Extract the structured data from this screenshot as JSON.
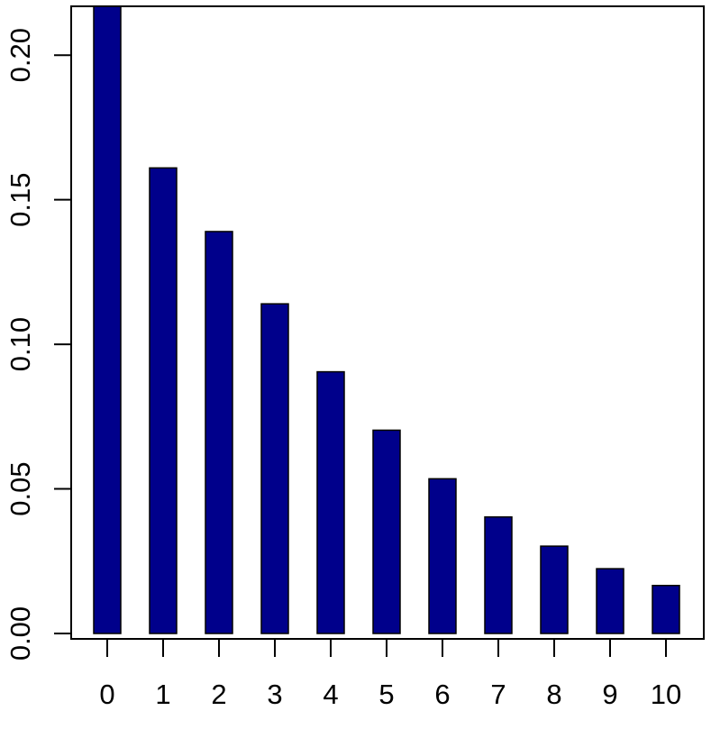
{
  "chart_data": {
    "type": "bar",
    "title": "",
    "xlabel": "",
    "ylabel": "",
    "categories": [
      "0",
      "1",
      "2",
      "3",
      "4",
      "5",
      "6",
      "7",
      "8",
      "9",
      "10"
    ],
    "values": [
      0.217,
      0.161,
      0.139,
      0.114,
      0.0905,
      0.0703,
      0.0535,
      0.0403,
      0.0302,
      0.0224,
      0.0166
    ],
    "ylim": [
      0,
      0.217
    ],
    "yticks": [
      "0.00",
      "0.05",
      "0.10",
      "0.15",
      "0.20"
    ],
    "ytick_values": [
      0,
      0.05,
      0.1,
      0.15,
      0.2
    ],
    "bar_color": "#00008B",
    "bar_edge_color": "#000000",
    "grid": false,
    "legend": "none"
  }
}
